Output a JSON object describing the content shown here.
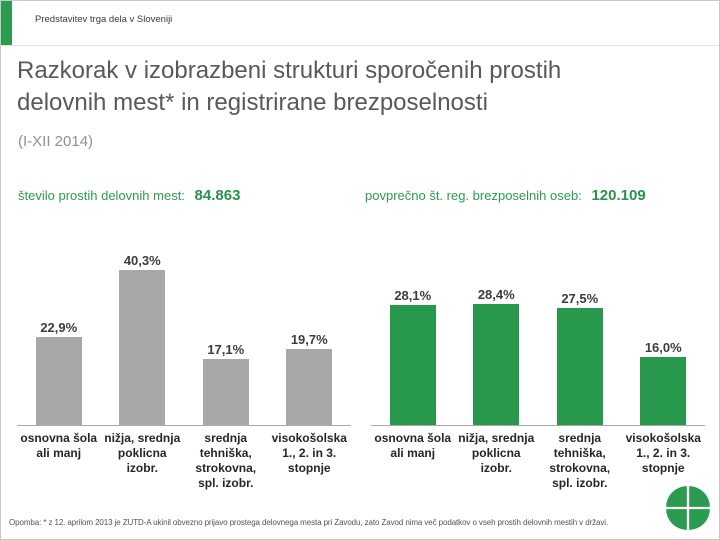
{
  "slide": {
    "kicker": "Predstavitev trga dela v Sloveniji",
    "title": "Razkorak v izobrazbeni strukturi sporočenih prostih delovnih mest* in registrirane brezposelnosti",
    "subtitle": "(I-XII 2014)",
    "footnote": "Opomba: * z 12. aprilom 2013 je ZUTD-A ukinil obvezno prijavo prostega delovnega mesta pri Zavodu, zato Zavod nima več podatkov o vseh prostih delovnih mestih v državi.",
    "logo_icon": "zrsz-pinwheel-logo-icon"
  },
  "stats": {
    "vacancies_label": "število prostih delovnih mest:",
    "vacancies_value": "84.863",
    "unemployed_label": "povprečno št. reg. brezposelnih oseb:",
    "unemployed_value": "120.109"
  },
  "chart_data": [
    {
      "type": "bar",
      "title": "število prostih delovnih mest",
      "categories": [
        "osnovna šola ali manj",
        "nižja, srednja poklicna izobr.",
        "srednja tehniška, strokovna, spl. izobr.",
        "visokošolska 1., 2. in 3. stopnje"
      ],
      "values": [
        22.9,
        40.3,
        17.1,
        19.7
      ],
      "value_labels": [
        "22,9%",
        "40,3%",
        "17,1%",
        "19,7%"
      ],
      "bar_color": "#a8a8a8",
      "ylim": [
        0,
        50
      ],
      "grid": false,
      "legend": "none"
    },
    {
      "type": "bar",
      "title": "povprečno št. reg. brezposelnih oseb",
      "categories": [
        "osnovna šola ali manj",
        "nižja, srednja poklicna izobr.",
        "srednja tehniška, strokovna, spl. izobr.",
        "visokošolska 1., 2. in 3. stopnje"
      ],
      "values": [
        28.1,
        28.4,
        27.5,
        16.0
      ],
      "value_labels": [
        "28,1%",
        "28,4%",
        "27,5%",
        "16,0%"
      ],
      "bar_color": "#27984c",
      "ylim": [
        0,
        45
      ],
      "grid": false,
      "legend": "none"
    }
  ],
  "colors": {
    "accent_green": "#2b9b4f",
    "bar_gray": "#a8a8a8",
    "bar_green": "#27984c",
    "title_gray": "#595959"
  }
}
